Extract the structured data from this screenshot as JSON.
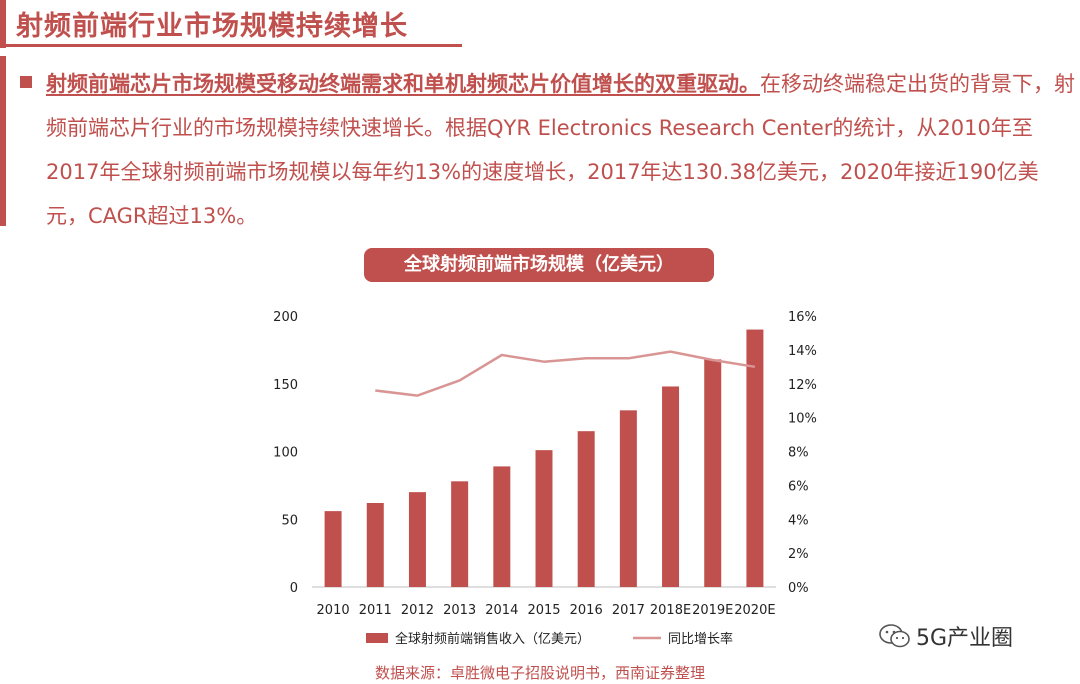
{
  "header": {
    "title": "射频前端行业市场规模持续增长"
  },
  "paragraph": {
    "lead": "射频前端芯片市场规模受移动终端需求和单机射频芯片价值增长的双重驱动。",
    "body": "在移动终端稳定出货的背景下，射频前端芯片行业的市场规模持续快速增长。根据QYR Electronics Research Center的统计，从2010年至2017年全球射频前端市场规模以每年约13%的速度增长，2017年达130.38亿美元，2020年接近190亿美元，CAGR超过13%。"
  },
  "chart_data": {
    "type": "bar+line",
    "title": "全球射频前端市场规模（亿美元）",
    "categories": [
      "2010",
      "2011",
      "2012",
      "2013",
      "2014",
      "2015",
      "2016",
      "2017",
      "2018E",
      "2019E",
      "2020E"
    ],
    "series": [
      {
        "name": "全球射频前端销售收入（亿美元）",
        "kind": "bar",
        "axis": "left",
        "color": "#c0504d",
        "values": [
          56,
          62,
          70,
          78,
          89,
          101,
          115,
          130.38,
          148,
          168,
          190
        ]
      },
      {
        "name": "同比增长率",
        "kind": "line",
        "axis": "right",
        "color": "#d99594",
        "values": [
          null,
          11.6,
          11.3,
          12.2,
          13.7,
          13.3,
          13.5,
          13.5,
          13.9,
          13.4,
          13.0
        ]
      }
    ],
    "y_left": {
      "min": 0,
      "max": 200,
      "ticks": [
        0,
        50,
        100,
        150,
        200
      ]
    },
    "y_right": {
      "min": 0,
      "max": 16,
      "ticks": [
        "0%",
        "2%",
        "4%",
        "6%",
        "8%",
        "10%",
        "12%",
        "14%",
        "16%"
      ]
    },
    "legend_position": "bottom",
    "grid": false
  },
  "source": "数据来源：卓胜微电子招股说明书，西南证券整理",
  "watermark": {
    "text": "5G产业圈",
    "icon": "wechat-icon"
  }
}
